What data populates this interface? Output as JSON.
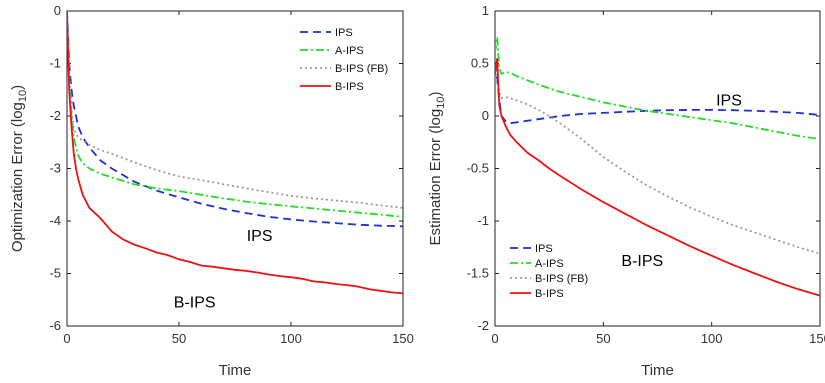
{
  "chart_data": [
    {
      "type": "line",
      "xlabel": "Time",
      "ylabel": "Optimization Error (log",
      "ylabel_sub": "10",
      "ylabel_suffix": ")",
      "xlim": [
        0,
        150
      ],
      "ylim": [
        -6,
        0
      ],
      "xticks": [
        0,
        50,
        100,
        150
      ],
      "yticks": [
        -6,
        -5,
        -4,
        -3,
        -2,
        -1,
        0
      ],
      "grid": false,
      "legend_position": "top-right",
      "series": [
        {
          "name": "IPS",
          "color": "#1f2fd6",
          "dash": "8,5",
          "x": [
            0,
            1,
            2,
            3,
            4,
            5,
            7,
            10,
            15,
            20,
            30,
            40,
            50,
            60,
            70,
            80,
            90,
            100,
            110,
            120,
            130,
            140,
            150
          ],
          "y": [
            0,
            -1.0,
            -1.5,
            -1.8,
            -2.0,
            -2.2,
            -2.4,
            -2.6,
            -2.85,
            -3.0,
            -3.25,
            -3.42,
            -3.55,
            -3.67,
            -3.77,
            -3.85,
            -3.92,
            -3.97,
            -4.01,
            -4.04,
            -4.07,
            -4.09,
            -4.1
          ]
        },
        {
          "name": "A-IPS",
          "color": "#22dd22",
          "dash": "8,3,2,3",
          "x": [
            0,
            1,
            2,
            3,
            4,
            5,
            7,
            10,
            15,
            20,
            30,
            40,
            50,
            60,
            70,
            80,
            90,
            100,
            110,
            120,
            130,
            140,
            150
          ],
          "y": [
            0,
            -1.3,
            -2.0,
            -2.4,
            -2.6,
            -2.75,
            -2.9,
            -3.0,
            -3.1,
            -3.17,
            -3.3,
            -3.38,
            -3.43,
            -3.5,
            -3.57,
            -3.63,
            -3.68,
            -3.72,
            -3.76,
            -3.8,
            -3.84,
            -3.88,
            -3.92
          ]
        },
        {
          "name": "B-IPS (FB)",
          "color": "#999999",
          "dash": "2,3",
          "x": [
            0,
            1,
            2,
            3,
            4,
            5,
            7,
            10,
            15,
            20,
            30,
            40,
            50,
            60,
            70,
            80,
            90,
            100,
            110,
            120,
            130,
            140,
            150
          ],
          "y": [
            0,
            -1.2,
            -1.9,
            -2.2,
            -2.35,
            -2.4,
            -2.47,
            -2.55,
            -2.65,
            -2.72,
            -2.88,
            -3.03,
            -3.15,
            -3.22,
            -3.3,
            -3.38,
            -3.45,
            -3.52,
            -3.57,
            -3.61,
            -3.65,
            -3.7,
            -3.75
          ]
        },
        {
          "name": "B-IPS",
          "color": "#ee1111",
          "dash": "",
          "x": [
            0,
            1,
            2,
            3,
            4,
            5,
            7,
            10,
            15,
            20,
            25,
            30,
            35,
            40,
            45,
            50,
            55,
            60,
            65,
            70,
            75,
            80,
            85,
            90,
            95,
            100,
            105,
            110,
            115,
            120,
            125,
            130,
            135,
            140,
            145,
            150
          ],
          "y": [
            0,
            -1.5,
            -2.2,
            -2.7,
            -3.0,
            -3.2,
            -3.5,
            -3.75,
            -3.95,
            -4.2,
            -4.35,
            -4.45,
            -4.52,
            -4.6,
            -4.65,
            -4.73,
            -4.78,
            -4.85,
            -4.87,
            -4.9,
            -4.93,
            -4.95,
            -4.98,
            -5.02,
            -5.05,
            -5.07,
            -5.1,
            -5.15,
            -5.17,
            -5.2,
            -5.22,
            -5.25,
            -5.3,
            -5.33,
            -5.36,
            -5.38
          ]
        }
      ],
      "annotations": [
        {
          "text": "IPS",
          "x": 86,
          "y": -4.38
        },
        {
          "text": "B-IPS",
          "x": 57,
          "y": -5.65
        }
      ]
    },
    {
      "type": "line",
      "xlabel": "Time",
      "ylabel": "Estimation Error (log",
      "ylabel_sub": "10",
      "ylabel_suffix": ")",
      "xlim": [
        0,
        150
      ],
      "ylim": [
        -2,
        1
      ],
      "xticks": [
        0,
        50,
        100,
        150
      ],
      "yticks": [
        -2,
        -1.5,
        -1,
        -0.5,
        0,
        0.5,
        1
      ],
      "grid": false,
      "legend_position": "bottom-left",
      "series": [
        {
          "name": "IPS",
          "color": "#1f2fd6",
          "dash": "8,5",
          "x": [
            0,
            1,
            2,
            3,
            5,
            7,
            10,
            20,
            30,
            40,
            50,
            60,
            70,
            80,
            90,
            100,
            110,
            120,
            130,
            140,
            150
          ],
          "y": [
            0.5,
            0.35,
            0.15,
            0.0,
            -0.05,
            -0.07,
            -0.06,
            -0.03,
            0.0,
            0.02,
            0.03,
            0.04,
            0.05,
            0.055,
            0.058,
            0.058,
            0.055,
            0.05,
            0.04,
            0.03,
            0.01
          ]
        },
        {
          "name": "A-IPS",
          "color": "#22dd22",
          "dash": "8,3,2,3",
          "x": [
            0,
            1,
            2,
            3,
            5,
            7,
            10,
            20,
            30,
            40,
            50,
            60,
            70,
            80,
            90,
            100,
            110,
            120,
            130,
            140,
            150
          ],
          "y": [
            0.6,
            0.75,
            0.45,
            0.4,
            0.42,
            0.41,
            0.38,
            0.3,
            0.23,
            0.18,
            0.13,
            0.09,
            0.05,
            0.02,
            -0.01,
            -0.04,
            -0.07,
            -0.11,
            -0.15,
            -0.19,
            -0.22
          ]
        },
        {
          "name": "B-IPS (FB)",
          "color": "#999999",
          "dash": "2,3",
          "x": [
            0,
            1,
            2,
            3,
            5,
            7,
            10,
            15,
            20,
            25,
            30,
            40,
            50,
            60,
            70,
            80,
            90,
            100,
            110,
            120,
            130,
            140,
            150
          ],
          "y": [
            0.45,
            0.35,
            0.22,
            0.17,
            0.18,
            0.17,
            0.15,
            0.11,
            0.06,
            0.0,
            -0.07,
            -0.22,
            -0.39,
            -0.53,
            -0.66,
            -0.77,
            -0.87,
            -0.96,
            -1.04,
            -1.11,
            -1.18,
            -1.25,
            -1.31
          ]
        },
        {
          "name": "B-IPS",
          "color": "#ee1111",
          "dash": "",
          "x": [
            0,
            1,
            2,
            3,
            5,
            7,
            10,
            15,
            20,
            25,
            30,
            40,
            50,
            60,
            70,
            80,
            90,
            100,
            110,
            120,
            130,
            140,
            150
          ],
          "y": [
            0.4,
            0.55,
            0.1,
            0.0,
            -0.1,
            -0.18,
            -0.25,
            -0.35,
            -0.42,
            -0.5,
            -0.57,
            -0.7,
            -0.82,
            -0.93,
            -1.04,
            -1.14,
            -1.24,
            -1.33,
            -1.42,
            -1.5,
            -1.58,
            -1.65,
            -1.71
          ]
        }
      ],
      "annotations": [
        {
          "text": "IPS",
          "x": 108,
          "y": 0.1
        },
        {
          "text": "B-IPS",
          "x": 68,
          "y": -1.43
        }
      ]
    }
  ]
}
